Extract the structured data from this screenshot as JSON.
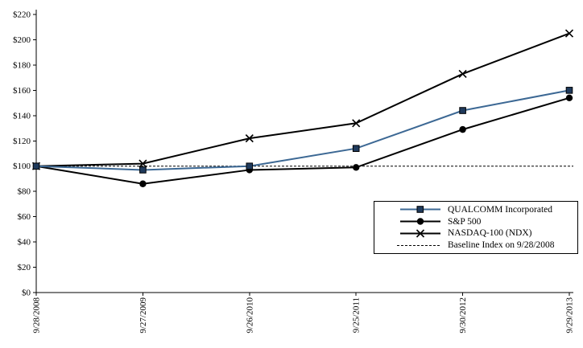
{
  "chart_data": {
    "type": "line",
    "title": "",
    "categories": [
      "9/28/2008",
      "9/27/2009",
      "9/26/2010",
      "9/25/2011",
      "9/30/2012",
      "9/29/2013"
    ],
    "series": [
      {
        "name": "QUALCOMM Incorporated",
        "marker": "square",
        "color": "#3c6894",
        "marker_color": "#1f3a5c",
        "values": [
          100,
          97,
          100,
          114,
          144,
          160
        ]
      },
      {
        "name": "S&P 500",
        "marker": "circle",
        "color": "#000000",
        "marker_color": "#000000",
        "values": [
          100,
          86,
          97,
          99,
          129,
          154
        ]
      },
      {
        "name": "NASDAQ-100 (NDX)",
        "marker": "x",
        "color": "#000000",
        "marker_color": "#000000",
        "values": [
          100,
          102,
          122,
          134,
          173,
          205
        ]
      }
    ],
    "baseline": {
      "label": "Baseline Index on 9/28/2008",
      "value": 100,
      "style": "dashed",
      "color": "#000000"
    },
    "y_axis": {
      "min": 0,
      "max": 220,
      "step": 20,
      "tick_labels": [
        "$0",
        "$20",
        "$40",
        "$60",
        "$80",
        "$100",
        "$120",
        "$140",
        "$160",
        "$180",
        "$200",
        "$220"
      ]
    },
    "x_axis": {
      "tick_labels_rotation": -90
    },
    "legend_position": "inside-bottom-right",
    "grid": false,
    "background_color": "#ffffff",
    "axis_color": "#000000"
  }
}
